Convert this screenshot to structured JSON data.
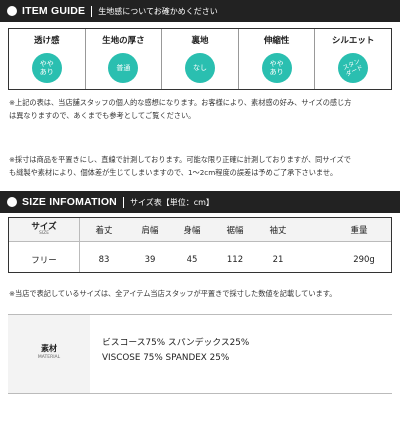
{
  "item_guide": {
    "title": "ITEM GUIDE",
    "subtitle": "生地感についてお確かめください",
    "items": [
      {
        "label": "透け感",
        "value": "やや\nあり",
        "style": "stack"
      },
      {
        "label": "生地の厚さ",
        "value": "普通",
        "style": "plain"
      },
      {
        "label": "裏地",
        "value": "なし",
        "style": "plain"
      },
      {
        "label": "伸縮性",
        "value": "やや\nあり",
        "style": "stack"
      },
      {
        "label": "シルエット",
        "value": "スタン\nダード",
        "style": "rot"
      }
    ],
    "accent_color": "#2abfb0"
  },
  "notes": {
    "note1_line1": "※上記の表は、当店舗スタッフの個人的な感想になります。お客様により、素材感の好み、サイズの感じ方",
    "note1_line2": "は異なりますので、あくまでも参考としてご覧ください。",
    "note2_line1": "※採寸は商品を平置きにし、直線で計測しております。可能な限り正確に計測しておりますが、同サイズで",
    "note2_line2": "も縫製や素材により、個体差が生じてしまいますので、1〜2cm程度の誤差は予めご了承下さいませ。"
  },
  "size_info": {
    "title": "SIZE INFOMATION",
    "subtitle": "サイズ表【単位：cm】",
    "label": "サイズ",
    "label_sub": "SIZE",
    "headers": [
      "着丈",
      "肩幅",
      "身幅",
      "裾幅",
      "袖丈",
      "重量"
    ],
    "row_label": "フリー",
    "values": [
      "83",
      "39",
      "45",
      "112",
      "21",
      "290g"
    ],
    "footnote": "※当店で表記しているサイズは、全アイテム当店スタッフが平置きで採寸した数値を記載しています。"
  },
  "material": {
    "label": "素材",
    "label_sub": "MATERIAL",
    "line_jp": "ビスコース75% スパンデックス25%",
    "line_en": "VISCOSE 75% SPANDEX 25%"
  }
}
